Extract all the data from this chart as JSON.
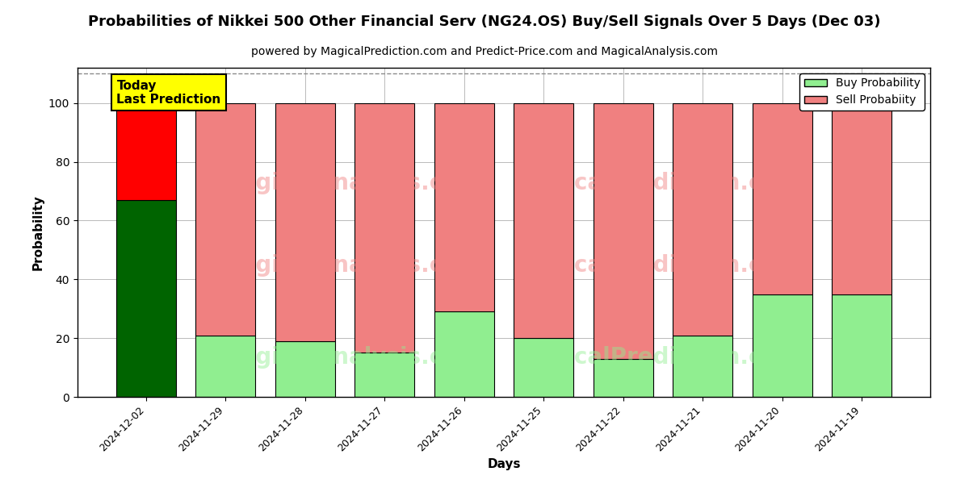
{
  "title": "Probabilities of Nikkei 500 Other Financial Serv (NG24.OS) Buy/Sell Signals Over 5 Days (Dec 03)",
  "subtitle": "powered by MagicalPrediction.com and Predict-Price.com and MagicalAnalysis.com",
  "xlabel": "Days",
  "ylabel": "Probability",
  "dates": [
    "2024-12-02",
    "2024-11-29",
    "2024-11-28",
    "2024-11-27",
    "2024-11-26",
    "2024-11-25",
    "2024-11-22",
    "2024-11-21",
    "2024-11-20",
    "2024-11-19"
  ],
  "buy_probs": [
    67,
    21,
    19,
    15,
    29,
    20,
    13,
    21,
    35,
    35
  ],
  "sell_probs": [
    33,
    79,
    81,
    85,
    71,
    80,
    87,
    79,
    65,
    65
  ],
  "today_buy_color": "#006400",
  "today_sell_color": "#FF0000",
  "buy_color": "#90EE90",
  "sell_color": "#F08080",
  "today_annotation": "Today\nLast Prediction",
  "today_annotation_bg": "#FFFF00",
  "legend_buy_label": "Buy Probability",
  "legend_sell_label": "Sell Probabiity",
  "ylim": [
    0,
    112
  ],
  "yticks": [
    0,
    20,
    40,
    60,
    80,
    100
  ],
  "dashed_line_y": 110,
  "grid_color": "#b0b0b0",
  "bar_edge_color": "#000000",
  "bar_width": 0.75,
  "watermark_row1_text1": "MagicalAnalysis.com",
  "watermark_row1_text2": "MagicalPrediction.com",
  "watermark_row2_text1": "MagicalAnalysis.com",
  "watermark_row2_text2": "MagicalPrediction.com",
  "watermark_color_top": "#F08080",
  "watermark_color_bottom": "#90EE90",
  "watermark_alpha": 0.45,
  "watermark_fontsize": 20
}
